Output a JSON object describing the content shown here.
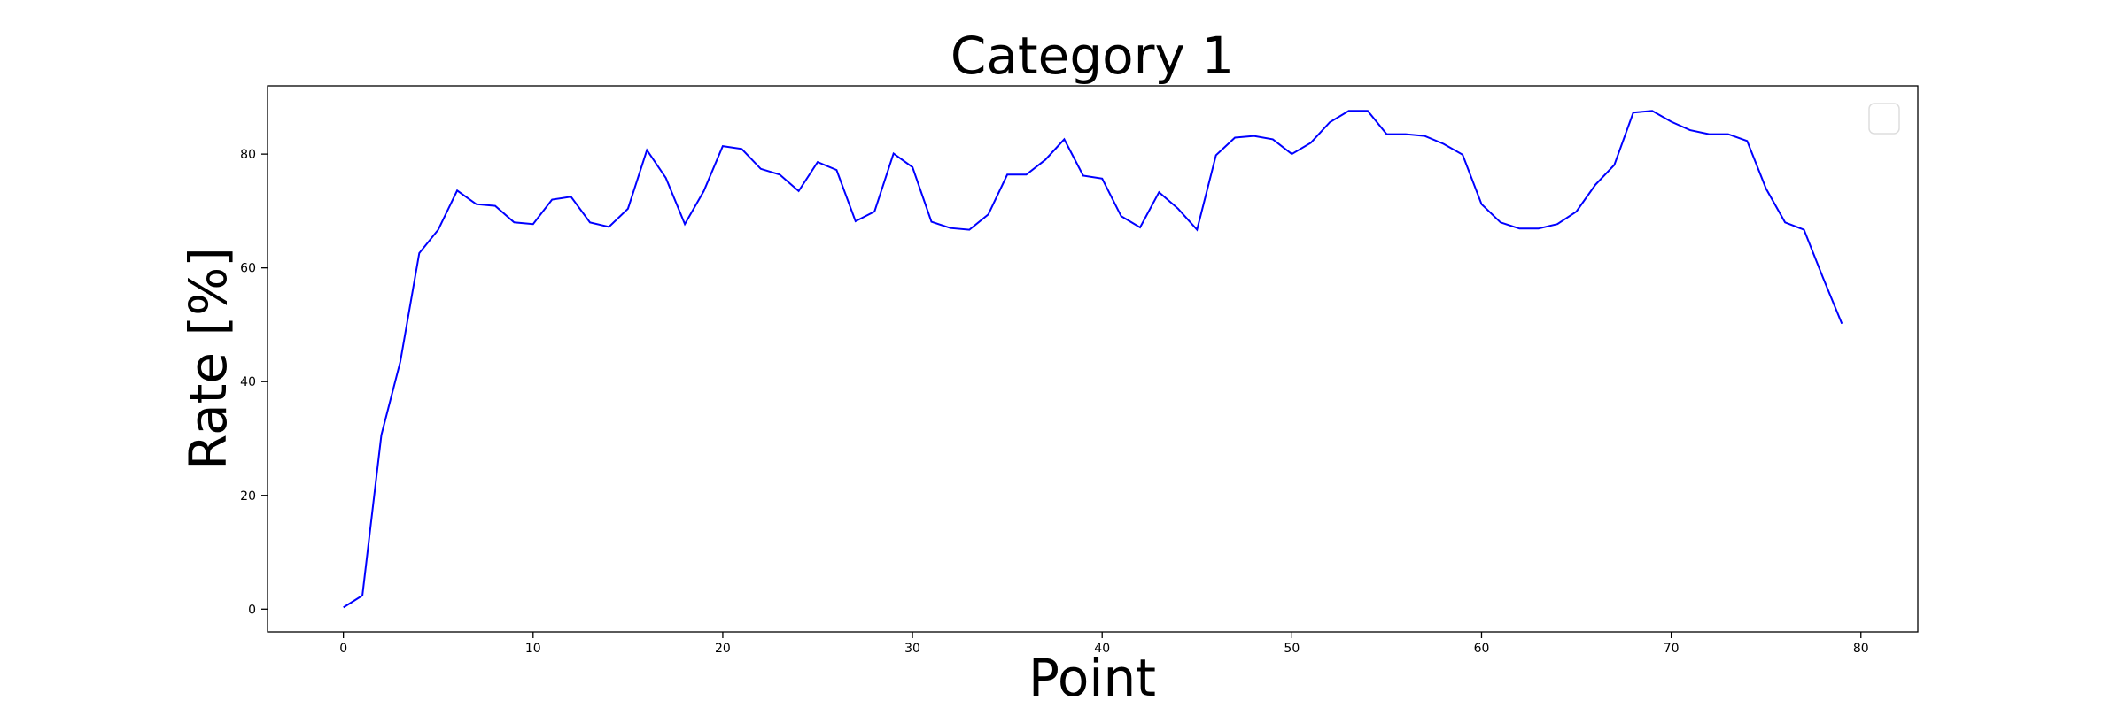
{
  "chart_data": {
    "type": "line",
    "title": "Category 1",
    "xlabel": "Point",
    "ylabel": "Rate [%]",
    "xlim": [
      -4,
      83
    ],
    "ylim": [
      -4,
      92
    ],
    "xticks": [
      0,
      10,
      20,
      30,
      40,
      50,
      60,
      70,
      80
    ],
    "yticks": [
      0,
      20,
      40,
      60,
      80
    ],
    "grid": false,
    "legend": {
      "placement": "top-right",
      "entries": []
    },
    "series": [
      {
        "color": "#0000ff",
        "x": [
          0,
          1,
          2,
          3,
          4,
          5,
          6,
          7,
          8,
          9,
          10,
          11,
          12,
          13,
          14,
          15,
          16,
          17,
          18,
          19,
          20,
          21,
          22,
          23,
          24,
          25,
          26,
          27,
          28,
          29,
          30,
          31,
          32,
          33,
          34,
          35,
          36,
          37,
          38,
          39,
          40,
          41,
          42,
          43,
          44,
          45,
          46,
          47,
          48,
          49,
          50,
          51,
          52,
          53,
          54,
          55,
          56,
          57,
          58,
          59,
          60,
          61,
          62,
          63,
          64,
          65,
          66,
          67,
          68,
          69,
          70,
          71,
          72,
          73,
          74,
          75,
          76,
          77,
          78,
          79
        ],
        "y": [
          0.3,
          2.4,
          30.6,
          43.5,
          62.6,
          66.7,
          73.6,
          71.2,
          70.9,
          68.0,
          67.7,
          72.0,
          72.5,
          68.0,
          67.2,
          70.4,
          80.7,
          75.8,
          67.7,
          73.5,
          81.4,
          80.9,
          77.4,
          76.4,
          73.5,
          78.6,
          77.2,
          68.2,
          69.9,
          80.1,
          77.7,
          68.1,
          67.0,
          66.7,
          69.4,
          76.4,
          76.4,
          79.0,
          82.6,
          76.2,
          75.7,
          69.1,
          67.1,
          73.3,
          70.4,
          66.7,
          79.8,
          82.9,
          83.2,
          82.6,
          80.0,
          82.0,
          85.6,
          87.6,
          87.6,
          83.5,
          83.5,
          83.2,
          81.8,
          79.9,
          71.2,
          68.0,
          66.9,
          66.9,
          67.7,
          69.9,
          74.6,
          78.1,
          87.3,
          87.6,
          85.7,
          84.2,
          83.5,
          83.5,
          82.3,
          73.9,
          68.0,
          66.7,
          58.3,
          50.2
        ]
      }
    ]
  }
}
